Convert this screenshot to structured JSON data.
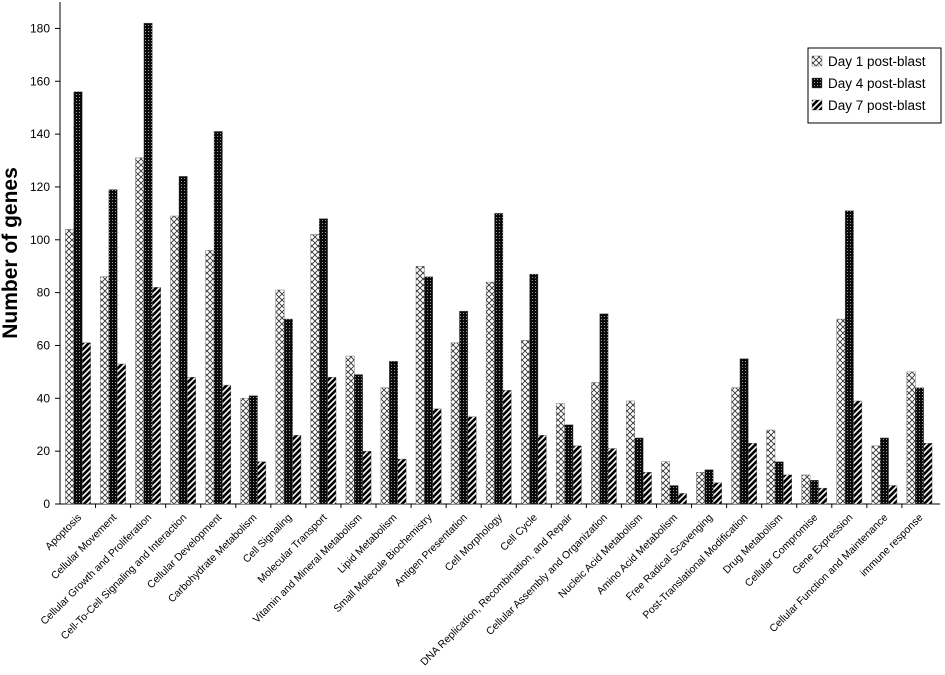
{
  "chart_data": {
    "type": "bar",
    "ylabel": "Number of genes",
    "xlabel": "",
    "ylim": [
      0,
      190
    ],
    "yticks": [
      0,
      20,
      40,
      60,
      80,
      100,
      120,
      140,
      160,
      180
    ],
    "legend_position": "top-right",
    "grid": false,
    "categories": [
      "Apoptosis",
      "Cellular Movement",
      "Cellular Growth and Proliferation",
      "Cell-To-Cell Signaling and Interaction",
      "Cellular Development",
      "Carbohydrate Metabolism",
      "Cell Signaling",
      "Molecular Transport",
      "Vitamin and Mineral Metabolism",
      "Lipid Metabolism",
      "Small Molecule Biochemistry",
      "Antigen Presentation",
      "Cell Morphology",
      "Cell Cycle",
      "DNA Replication, Recombination, and Repair",
      "Cellular Assembly and Organization",
      "Nucleic Acid Metabolism",
      "Amino Acid Metabolism",
      "Free Radical Scavenging",
      "Post-Translational Modification",
      "Drug Metabolism",
      "Cellular Compromise",
      "Gene Expression",
      "Cellular Function and Maintenance",
      "immune response"
    ],
    "series": [
      {
        "name": "Day 1 post-blast",
        "pattern": "crosshatch",
        "values": [
          104,
          86,
          131,
          109,
          96,
          40,
          81,
          102,
          56,
          44,
          90,
          61,
          84,
          62,
          38,
          46,
          39,
          16,
          12,
          44,
          28,
          11,
          70,
          22,
          50
        ]
      },
      {
        "name": "Day 4 post-blast",
        "pattern": "dark-dotted",
        "values": [
          156,
          119,
          182,
          124,
          141,
          41,
          70,
          108,
          49,
          54,
          86,
          73,
          110,
          87,
          30,
          72,
          25,
          7,
          13,
          55,
          16,
          9,
          111,
          25,
          44
        ]
      },
      {
        "name": "Day 7 post-blast",
        "pattern": "diagonal",
        "values": [
          61,
          53,
          82,
          48,
          45,
          16,
          26,
          48,
          20,
          17,
          36,
          33,
          43,
          26,
          22,
          21,
          12,
          4,
          8,
          23,
          11,
          6,
          39,
          7,
          23
        ]
      }
    ]
  }
}
